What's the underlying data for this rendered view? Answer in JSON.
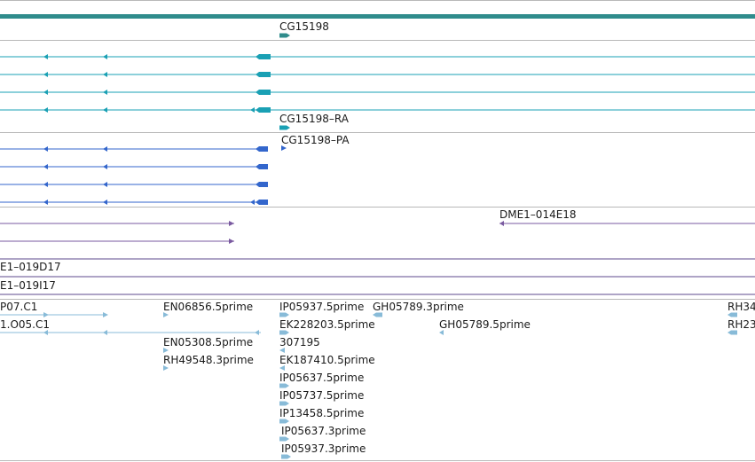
{
  "colors": {
    "gene": "#2f8c8c",
    "transcript": "#1aa0b4",
    "protein": "#3366cc",
    "clone": "#7a5aa0",
    "clone_line": "#5c4a8c",
    "est": "#88bbd8",
    "separator": "#b8b8b8"
  },
  "gene_track": {
    "labels": [
      "CG15198"
    ]
  },
  "transcript_track": {
    "labels": [
      "CG15198–RA"
    ]
  },
  "protein_track": {
    "labels": [
      "CG15198–PA"
    ]
  },
  "clone_track": {
    "labels": [
      "DME1–014E18"
    ]
  },
  "bac_track": {
    "labels": [
      "E1–019D17",
      "E1–019I17"
    ]
  },
  "est_track": {
    "labels": [
      "P07.C1",
      "1.O05.C1",
      "EN06856.5prime",
      "EN05308.5prime",
      "RH49548.3prime",
      "IP05937.5prime",
      "EK228203.5prime",
      "307195",
      "EK187410.5prime",
      "IP05637.5prime",
      "IP05737.5prime",
      "IP13458.5prime",
      "IP05637.3prime",
      "IP05937.3prime",
      "GH05789.3prime",
      "GH05789.5prime",
      "RH34",
      "RH23"
    ]
  }
}
